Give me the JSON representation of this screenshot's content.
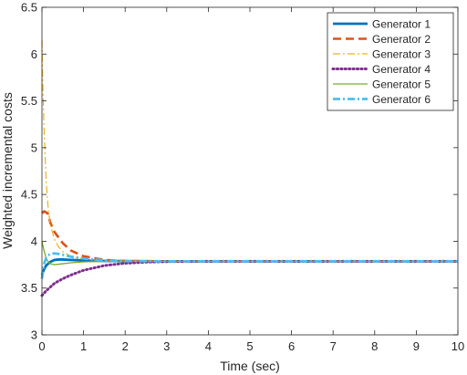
{
  "chart_data": {
    "type": "line",
    "title": "",
    "xlabel": "Time (sec)",
    "ylabel": "Weighted incremental costs",
    "xlim": [
      0,
      10
    ],
    "ylim": [
      3,
      6.5
    ],
    "xticks": [
      "0",
      "1",
      "2",
      "3",
      "4",
      "5",
      "6",
      "7",
      "8",
      "9",
      "10"
    ],
    "yticks": [
      "3",
      "3.5",
      "4",
      "4.5",
      "5",
      "5.5",
      "6",
      "6.5"
    ],
    "grid": false,
    "legend_position": "top-right",
    "series": [
      {
        "name": "Generator 1",
        "color": "#0072BD",
        "style": "solid-thick",
        "x": [
          0,
          0.05,
          0.1,
          0.2,
          0.3,
          0.4,
          0.5,
          0.7,
          1.0,
          1.5,
          2.0,
          3.0,
          10
        ],
        "y": [
          3.64,
          3.7,
          3.74,
          3.78,
          3.8,
          3.805,
          3.805,
          3.8,
          3.795,
          3.79,
          3.787,
          3.786,
          3.786
        ]
      },
      {
        "name": "Generator 2",
        "color": "#D95319",
        "style": "dashed",
        "x": [
          0,
          0.05,
          0.1,
          0.15,
          0.2,
          0.3,
          0.5,
          0.7,
          1.0,
          1.5,
          2.0,
          3.0,
          10
        ],
        "y": [
          4.3,
          4.32,
          4.31,
          4.29,
          4.2,
          4.1,
          3.98,
          3.9,
          3.84,
          3.8,
          3.79,
          3.786,
          3.786
        ]
      },
      {
        "name": "Generator 3",
        "color": "#EDB120",
        "style": "dashdot",
        "x": [
          0,
          0.02,
          0.05,
          0.1,
          0.15,
          0.2,
          0.3,
          0.4,
          0.5,
          0.7,
          1.0,
          1.5,
          2.0,
          3.0,
          10
        ],
        "y": [
          6.15,
          5.7,
          5.2,
          4.65,
          4.35,
          4.18,
          4.02,
          3.94,
          3.89,
          3.84,
          3.81,
          3.79,
          3.787,
          3.786,
          3.786
        ]
      },
      {
        "name": "Generator 4",
        "color": "#7E2F8E",
        "style": "dotted",
        "x": [
          0,
          0.1,
          0.2,
          0.3,
          0.5,
          0.7,
          1.0,
          1.5,
          2.0,
          2.5,
          3.0,
          4.0,
          10
        ],
        "y": [
          3.42,
          3.47,
          3.51,
          3.55,
          3.6,
          3.64,
          3.69,
          3.74,
          3.765,
          3.777,
          3.783,
          3.786,
          3.786
        ]
      },
      {
        "name": "Generator 5",
        "color": "#77AC30",
        "style": "solid-thin",
        "x": [
          0,
          0.05,
          0.1,
          0.15,
          0.2,
          0.3,
          0.4,
          0.5,
          0.7,
          1.0,
          1.5,
          2.0,
          3.0,
          10
        ],
        "y": [
          4.0,
          3.9,
          3.82,
          3.78,
          3.76,
          3.75,
          3.755,
          3.76,
          3.77,
          3.78,
          3.785,
          3.786,
          3.786,
          3.786
        ]
      },
      {
        "name": "Generator 6",
        "color": "#4DBEEE",
        "style": "dashdot-thick",
        "x": [
          0,
          0.03,
          0.06,
          0.1,
          0.15,
          0.2,
          0.3,
          0.4,
          0.5,
          0.7,
          1.0,
          1.5,
          2.0,
          3.0,
          10
        ],
        "y": [
          3.6,
          3.7,
          3.77,
          3.82,
          3.85,
          3.865,
          3.87,
          3.865,
          3.855,
          3.835,
          3.815,
          3.795,
          3.789,
          3.786,
          3.786
        ]
      }
    ]
  }
}
